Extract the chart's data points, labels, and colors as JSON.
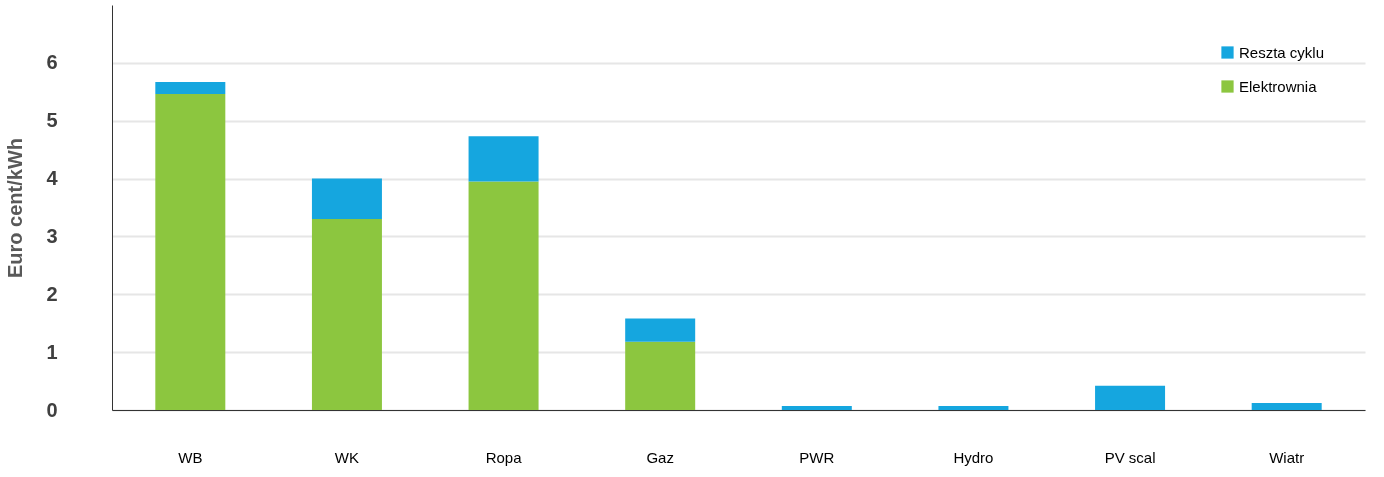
{
  "chart_data": {
    "type": "bar",
    "stacked": true,
    "ylabel": "Euro cent/kWh",
    "categories": [
      "WB",
      "WK",
      "Ropa",
      "Gaz",
      "PWR",
      "Hydro",
      "PV scal",
      "Wiatr"
    ],
    "series": [
      {
        "name": "Elektrownia",
        "color": "#8cc63f",
        "values": [
          5.46,
          3.3,
          3.95,
          1.18,
          0,
          0,
          0,
          0
        ]
      },
      {
        "name": "Reszta cyklu",
        "color": "#15a6df",
        "values": [
          0.21,
          0.7,
          0.78,
          0.4,
          0.07,
          0.07,
          0.42,
          0.12
        ]
      }
    ],
    "ylim": [
      0,
      7
    ],
    "yticks": [
      0,
      1,
      2,
      3,
      4,
      5,
      6
    ],
    "grid": "y",
    "legend": "top right"
  }
}
